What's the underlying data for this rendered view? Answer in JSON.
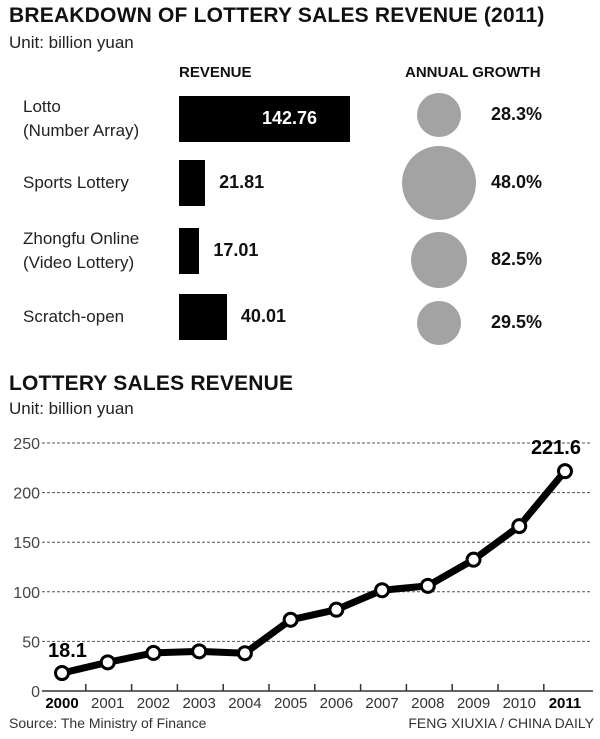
{
  "chart_data": [
    {
      "type": "bar",
      "title": "BREAKDOWN OF LOTTERY SALES REVENUE (2011)",
      "subtitle": "Unit: billion yuan",
      "columns": [
        "REVENUE",
        "ANNUAL GROWTH"
      ],
      "categories": [
        "Lotto\n(Number Array)",
        "Sports Lottery",
        "Zhongfu Online\n(Video Lottery)",
        "Scratch-open"
      ],
      "category_lines": [
        [
          "Lotto",
          "(Number Array)"
        ],
        [
          "Sports Lottery"
        ],
        [
          "Zhongfu Online",
          "(Video Lottery)"
        ],
        [
          "Scratch-open"
        ]
      ],
      "values": [
        142.76,
        21.81,
        17.01,
        40.01
      ],
      "value_labels": [
        "142.76",
        "21.81",
        "17.01",
        "40.01"
      ],
      "growth": [
        28.3,
        48.0,
        82.5,
        29.5
      ],
      "growth_labels": [
        "28.3%",
        "48.0%",
        "82.5%",
        "29.5%"
      ],
      "bar_color": "#000000",
      "bubble_color": "#a3a3a3"
    },
    {
      "type": "line",
      "title": "LOTTERY SALES REVENUE",
      "subtitle": "Unit: billion yuan",
      "x": [
        "2000",
        "2001",
        "2002",
        "2003",
        "2004",
        "2005",
        "2006",
        "2007",
        "2008",
        "2009",
        "2010",
        "2011"
      ],
      "values": [
        18.1,
        28.9,
        38.4,
        40.0,
        38.1,
        71.8,
        82.0,
        101.6,
        106.0,
        132.4,
        166.2,
        221.6
      ],
      "data_labels": {
        "first": "18.1",
        "last": "221.6"
      },
      "ylim": [
        0,
        250
      ],
      "yticks": [
        "0",
        "50",
        "100",
        "150",
        "200",
        "250"
      ],
      "grid": true,
      "line_color": "#000000"
    }
  ],
  "footer": {
    "source": "Source: The Ministry of Finance",
    "credit": "FENG XIUXIA / CHINA DAILY"
  }
}
